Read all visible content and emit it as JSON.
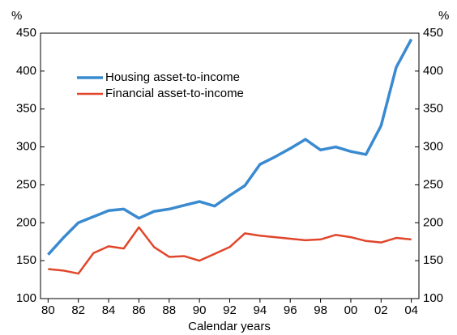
{
  "chart_data": {
    "type": "line",
    "x_label": "Calendar years",
    "y_label": "%",
    "y2_label": "%",
    "x": [
      1980,
      1981,
      1982,
      1983,
      1984,
      1985,
      1986,
      1987,
      1988,
      1989,
      1990,
      1991,
      1992,
      1993,
      1994,
      1995,
      1996,
      1997,
      1998,
      1999,
      2000,
      2001,
      2002,
      2003,
      2004
    ],
    "series": [
      {
        "name": "Housing asset-to-income",
        "color": "#3a8ad0",
        "values": [
          158,
          180,
          200,
          208,
          216,
          218,
          206,
          215,
          218,
          223,
          228,
          222,
          236,
          249,
          277,
          287,
          298,
          310,
          296,
          300,
          294,
          290,
          328,
          405,
          442
        ]
      },
      {
        "name": "Financial asset-to-income",
        "color": "#e0462a",
        "values": [
          139,
          137,
          133,
          160,
          169,
          166,
          194,
          168,
          155,
          156,
          150,
          159,
          168,
          186,
          183,
          181,
          179,
          177,
          178,
          184,
          181,
          176,
          174,
          180,
          178
        ]
      }
    ],
    "xlim": [
      1979.5,
      2004.5
    ],
    "xticks": [
      {
        "value": 1980,
        "label": "80"
      },
      {
        "value": 1982,
        "label": "82"
      },
      {
        "value": 1984,
        "label": "84"
      },
      {
        "value": 1986,
        "label": "86"
      },
      {
        "value": 1988,
        "label": "88"
      },
      {
        "value": 1990,
        "label": "90"
      },
      {
        "value": 1992,
        "label": "92"
      },
      {
        "value": 1994,
        "label": "94"
      },
      {
        "value": 1996,
        "label": "96"
      },
      {
        "value": 1998,
        "label": "98"
      },
      {
        "value": 2000,
        "label": "00"
      },
      {
        "value": 2002,
        "label": "02"
      },
      {
        "value": 2004,
        "label": "04"
      }
    ],
    "ylim": [
      100,
      450
    ],
    "yticks": [
      100,
      150,
      200,
      250,
      300,
      350,
      400,
      450
    ],
    "y2lim": [
      100,
      450
    ],
    "y2ticks": [
      100,
      150,
      200,
      250,
      300,
      350,
      400,
      450
    ],
    "grid": false,
    "legend": "upper left"
  }
}
